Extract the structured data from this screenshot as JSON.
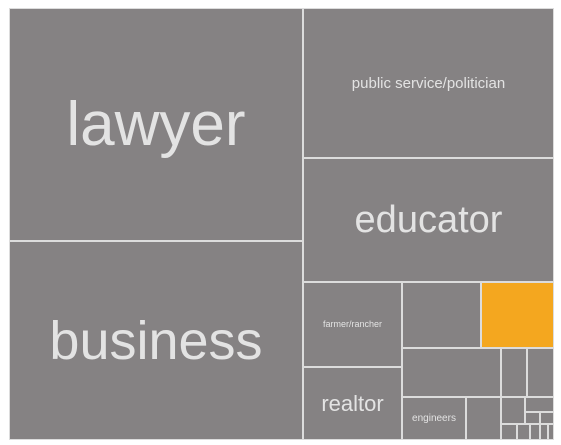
{
  "chart_data": {
    "type": "treemap",
    "title": "",
    "colors": {
      "cell": "#858283",
      "highlight": "#f4a71f",
      "label": "#e3e3e3",
      "border": "#dcdcdc"
    },
    "items": [
      {
        "label": "lawyer",
        "highlight": false
      },
      {
        "label": "business",
        "highlight": false
      },
      {
        "label": "public service/politician",
        "highlight": false
      },
      {
        "label": "educator",
        "highlight": false
      },
      {
        "label": "farmer/rancher",
        "highlight": false
      },
      {
        "label": "",
        "highlight": false
      },
      {
        "label": "",
        "highlight": true
      },
      {
        "label": "realtor",
        "highlight": false
      },
      {
        "label": "",
        "highlight": false
      },
      {
        "label": "engineers",
        "highlight": false
      },
      {
        "label": "",
        "highlight": false
      },
      {
        "label": "",
        "highlight": false
      },
      {
        "label": "",
        "highlight": false
      },
      {
        "label": "",
        "highlight": false
      },
      {
        "label": "",
        "highlight": false
      },
      {
        "label": "",
        "highlight": false
      },
      {
        "label": "",
        "highlight": false
      },
      {
        "label": "",
        "highlight": false
      },
      {
        "label": "",
        "highlight": false
      },
      {
        "label": "",
        "highlight": false
      },
      {
        "label": "",
        "highlight": false
      },
      {
        "label": "",
        "highlight": false
      }
    ]
  }
}
